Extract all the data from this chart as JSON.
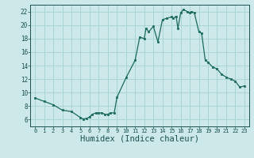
{
  "x": [
    0,
    1,
    2,
    3,
    4,
    5,
    5.3,
    5.7,
    6.0,
    6.3,
    6.7,
    7.0,
    7.3,
    7.7,
    8.0,
    8.3,
    8.7,
    9.0,
    10.0,
    11.0,
    11.5,
    12.0,
    12.2,
    12.5,
    13.0,
    13.5,
    14.0,
    14.5,
    15.0,
    15.2,
    15.5,
    15.7,
    16.0,
    16.3,
    16.7,
    17.0,
    17.2,
    17.5,
    18.0,
    18.3,
    18.7,
    19.0,
    19.5,
    20.0,
    20.5,
    21.0,
    21.5,
    22.0,
    22.5,
    23.0
  ],
  "y": [
    9.2,
    8.7,
    8.2,
    7.4,
    7.2,
    6.3,
    6.1,
    6.2,
    6.4,
    6.8,
    7.0,
    7.0,
    7.0,
    6.8,
    6.8,
    7.0,
    7.0,
    9.3,
    12.2,
    14.8,
    18.2,
    18.0,
    19.5,
    19.0,
    19.8,
    17.5,
    20.8,
    21.0,
    21.2,
    21.0,
    21.3,
    19.5,
    21.8,
    22.3,
    22.0,
    21.8,
    22.0,
    21.8,
    19.0,
    18.8,
    14.8,
    14.5,
    13.8,
    13.5,
    12.7,
    12.3,
    12.0,
    11.7,
    10.8,
    11.0
  ],
  "line_color": "#1a6b5a",
  "marker_color": "#1a6b5a",
  "bg_color": "#cce8e8",
  "grid_color": "#aad4d4",
  "xlabel": "Humidex (Indice chaleur)",
  "xlabel_fontsize": 7.5,
  "tick_label_color": "#1a5050",
  "ylim": [
    5,
    23
  ],
  "xlim": [
    -0.5,
    23.5
  ],
  "yticks": [
    6,
    8,
    10,
    12,
    14,
    16,
    18,
    20,
    22
  ],
  "xticks": [
    0,
    1,
    2,
    3,
    4,
    5,
    6,
    7,
    8,
    9,
    10,
    11,
    12,
    13,
    14,
    15,
    16,
    17,
    18,
    19,
    20,
    21,
    22,
    23
  ]
}
